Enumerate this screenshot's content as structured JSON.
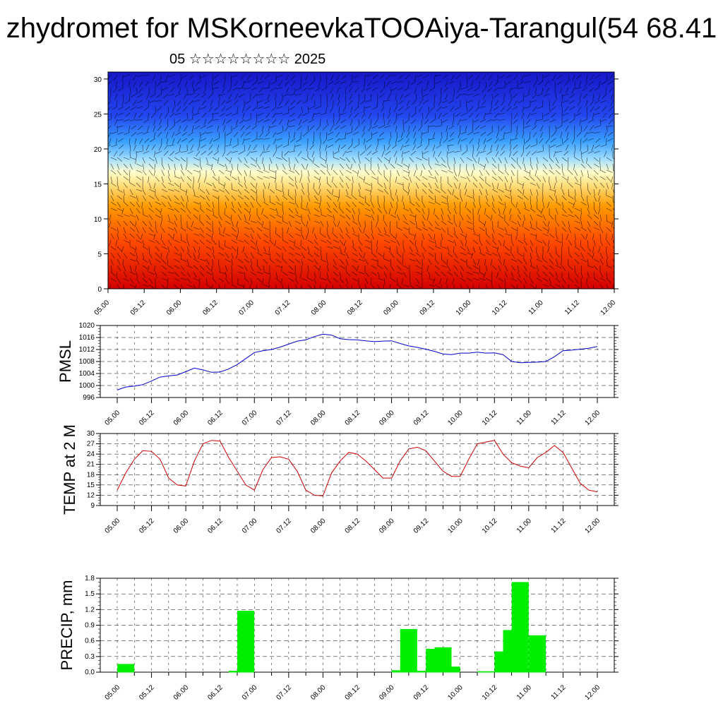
{
  "title": "zhydromet for MSKorneevkaTOOAiya-Tarangul(54 68.41",
  "subtitle": "05 ☆☆☆☆☆☆☆☆ 2025",
  "colors": {
    "pressure_line": "#0000cc",
    "temp_line": "#cc0000",
    "precip_bars": "#00ee00"
  },
  "chart_data": [
    {
      "type": "heatmap",
      "title": "",
      "xlabel": "",
      "ylabel": "",
      "x_ticks": [
        "05.00",
        "05.12",
        "06.00",
        "06.12",
        "07.00",
        "07.12",
        "08.00",
        "08.12",
        "09.00",
        "09.12",
        "10.00",
        "10.12",
        "11.00",
        "11.12",
        "12.00"
      ],
      "y_ticks": [
        "0",
        "5",
        "10",
        "15",
        "20",
        "25",
        "30"
      ],
      "ylim": [
        0,
        31
      ],
      "note_colors": [
        "#cc0000",
        "#ff5500",
        "#ff9900",
        "#ffee88",
        "#66ccff",
        "#2255ee",
        "#1a1acc"
      ],
      "overlay": "wind vectors"
    },
    {
      "type": "line",
      "ylabel": "PMSL",
      "ylim": [
        996,
        1020
      ],
      "y_ticks": [
        "996",
        "1000",
        "1004",
        "1008",
        "1012",
        "1016",
        "1020"
      ],
      "x_ticks": [
        "05.00",
        "05.12",
        "06.00",
        "06.12",
        "07.00",
        "07.12",
        "08.00",
        "08.12",
        "09.00",
        "09.12",
        "10.00",
        "10.12",
        "11.00",
        "11.12",
        "12.00"
      ],
      "x": [
        0,
        3,
        6,
        9,
        12,
        15,
        18,
        21,
        24,
        27,
        30,
        33,
        36,
        39,
        42,
        45,
        48,
        51,
        54,
        57,
        60,
        63,
        66,
        69,
        72,
        75,
        78,
        81,
        84,
        87,
        90,
        93,
        96,
        99,
        102,
        105,
        108,
        111,
        114,
        117,
        120,
        123,
        126,
        129,
        132,
        135,
        138,
        141,
        144,
        147,
        150,
        153,
        156,
        159,
        162,
        165,
        168
      ],
      "values": [
        998.5,
        999.5,
        999.8,
        1000.3,
        1001.5,
        1002.8,
        1003.2,
        1003.5,
        1004.6,
        1005.8,
        1005.2,
        1004.4,
        1004.5,
        1005.5,
        1007.0,
        1009.0,
        1011.0,
        1011.6,
        1012.0,
        1012.8,
        1013.8,
        1014.8,
        1015.2,
        1016.3,
        1017.1,
        1016.8,
        1015.6,
        1015.3,
        1015.2,
        1014.9,
        1014.6,
        1014.8,
        1014.9,
        1014.0,
        1013.2,
        1012.7,
        1012.1,
        1011.4,
        1010.5,
        1010.3,
        1010.8,
        1010.8,
        1011.1,
        1010.8,
        1010.9,
        1010.3,
        1008.0,
        1007.6,
        1007.7,
        1007.8,
        1008.0,
        1009.6,
        1011.6,
        1011.8,
        1012.1,
        1012.4,
        1013.0
      ]
    },
    {
      "type": "line",
      "ylabel": "TEMP at 2 M",
      "ylim": [
        9,
        30
      ],
      "y_ticks": [
        "9",
        "12",
        "15",
        "18",
        "21",
        "24",
        "27",
        "30"
      ],
      "x_ticks": [
        "05.00",
        "05.12",
        "06.00",
        "06.12",
        "07.00",
        "07.12",
        "08.00",
        "08.12",
        "09.00",
        "09.12",
        "10.00",
        "10.12",
        "11.00",
        "11.12",
        "12.00"
      ],
      "x": [
        0,
        3,
        6,
        9,
        12,
        15,
        18,
        21,
        24,
        27,
        30,
        33,
        36,
        39,
        42,
        45,
        48,
        51,
        54,
        57,
        60,
        63,
        66,
        69,
        72,
        75,
        78,
        81,
        84,
        87,
        90,
        93,
        96,
        99,
        102,
        105,
        108,
        111,
        114,
        117,
        120,
        123,
        126,
        129,
        132,
        135,
        138,
        141,
        144,
        147,
        150,
        153,
        156,
        159,
        162,
        165,
        168
      ],
      "values": [
        13.5,
        18.5,
        22.5,
        25.0,
        24.8,
        22.5,
        17.0,
        15.0,
        14.7,
        22.0,
        27.0,
        28.0,
        27.8,
        23.0,
        19.0,
        15.0,
        13.5,
        19.5,
        23.0,
        23.2,
        22.5,
        19.0,
        13.5,
        12.0,
        11.8,
        18.5,
        22.0,
        24.5,
        24.0,
        22.0,
        19.5,
        17.0,
        17.0,
        22.0,
        25.5,
        26.0,
        25.0,
        22.0,
        19.0,
        17.5,
        17.5,
        22.5,
        27.0,
        27.5,
        28.0,
        24.0,
        21.5,
        20.5,
        20.0,
        23.0,
        24.5,
        26.5,
        24.5,
        20.0,
        15.5,
        13.5,
        13.0
      ]
    },
    {
      "type": "bar",
      "ylabel": "PRECIP, mm",
      "ylim": [
        0,
        1.8
      ],
      "y_ticks": [
        "0.0",
        "0.3",
        "0.6",
        "0.9",
        "1.2",
        "1.5",
        "1.8"
      ],
      "x_ticks": [
        "05.00",
        "05.12",
        "06.00",
        "06.12",
        "07.00",
        "07.12",
        "08.00",
        "08.12",
        "09.00",
        "09.12",
        "10.00",
        "10.12",
        "11.00",
        "11.12",
        "12.00"
      ],
      "x": [
        3,
        9,
        15,
        21,
        27,
        33,
        39,
        42,
        45,
        51,
        57,
        63,
        69,
        75,
        81,
        87,
        93,
        99,
        102,
        105,
        111,
        114,
        117,
        120,
        123,
        129,
        132,
        135,
        138,
        141,
        147,
        150,
        153,
        159,
        165
      ],
      "values": [
        0.15,
        0.0,
        0.0,
        0.0,
        0.0,
        0.0,
        0.0,
        0.02,
        1.17,
        0.0,
        0.0,
        0.0,
        0.0,
        0.0,
        0.0,
        0.0,
        0.0,
        0.03,
        0.82,
        0.02,
        0.44,
        0.47,
        0.1,
        0.0,
        0.0,
        0.01,
        0.0,
        0.39,
        0.8,
        1.72,
        0.7,
        0.0,
        0.0,
        0.0,
        0.0
      ]
    }
  ]
}
